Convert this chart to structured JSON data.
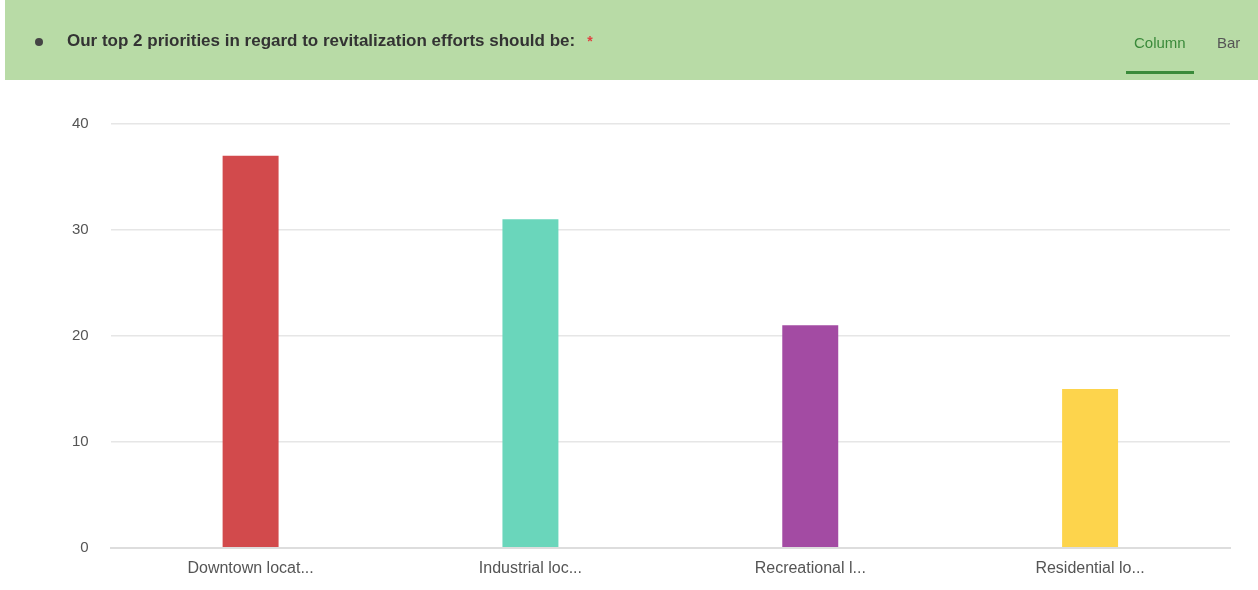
{
  "chart_data": {
    "type": "bar",
    "title": "Our top 2 priorities in regard to revitalization efforts should be:",
    "annotations": [
      "*",
      "Column",
      "Bar"
    ],
    "categories": [
      "Downtown locat...",
      "Industrial loc...",
      "Recreational l...",
      "Residential lo..."
    ],
    "values": [
      37,
      31,
      21,
      15
    ],
    "colors": [
      "#d24a4c",
      "#6ad6bb",
      "#a34ba3",
      "#fdd44c"
    ],
    "ylim": [
      0,
      40
    ],
    "yticks": [
      0,
      10,
      20,
      30,
      40
    ],
    "grid": "y",
    "legend": false
  }
}
